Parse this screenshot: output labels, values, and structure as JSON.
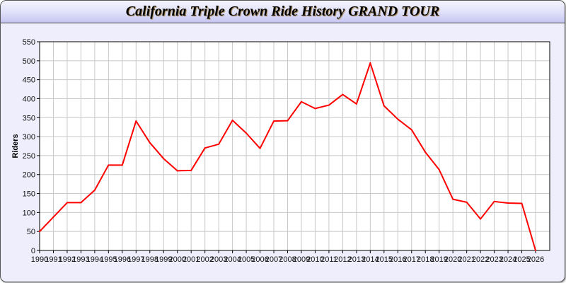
{
  "chart_data": {
    "type": "line",
    "title": "California Triple Crown Ride History GRAND TOUR",
    "xlabel": "",
    "ylabel": "Riders",
    "ylim": [
      0,
      550
    ],
    "yticks": [
      0,
      50,
      100,
      150,
      200,
      250,
      300,
      350,
      400,
      450,
      500,
      550
    ],
    "grid": true,
    "line_color": "#ff0000",
    "x": [
      1990,
      1991,
      1992,
      1993,
      1994,
      1995,
      1996,
      1997,
      1998,
      1999,
      2000,
      2001,
      2002,
      2003,
      2004,
      2005,
      2006,
      2007,
      2008,
      2009,
      2010,
      2011,
      2012,
      2013,
      2014,
      2015,
      2016,
      2017,
      2018,
      2019,
      2020,
      2021,
      2022,
      2023,
      2024,
      2025,
      2026
    ],
    "series": [
      {
        "values": [
          50,
          88,
          126,
          126,
          159,
          225,
          225,
          341,
          284,
          242,
          210,
          211,
          270,
          280,
          343,
          309,
          269,
          341,
          342,
          392,
          374,
          383,
          411,
          386,
          494,
          381,
          346,
          318,
          259,
          213,
          135,
          127,
          83,
          129,
          125,
          124,
          0
        ]
      }
    ]
  }
}
